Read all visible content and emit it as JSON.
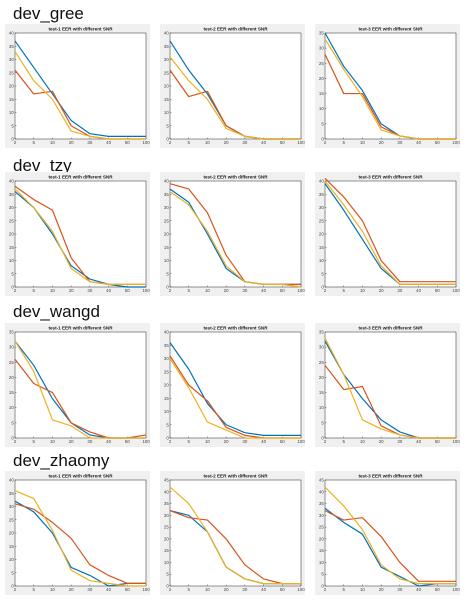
{
  "colors": {
    "blue": "#0072BD",
    "red": "#D95319",
    "yellow": "#EDB120"
  },
  "rows": [
    {
      "label": "dev_gree",
      "charts": [
        {
          "type": "line",
          "title": "test-1 EER with different SNR",
          "categories": [
            "2",
            "5",
            "10",
            "20",
            "30",
            "40",
            "50",
            "100"
          ],
          "yticks": [
            0,
            5,
            10,
            15,
            20,
            25,
            30,
            35,
            40
          ],
          "ylim": [
            0,
            40
          ],
          "series": [
            {
              "color": "blue",
              "values": [
                37,
                27,
                17,
                7,
                2,
                1,
                1,
                1
              ]
            },
            {
              "color": "red",
              "values": [
                26,
                17,
                18,
                5,
                1,
                0,
                0,
                0
              ]
            },
            {
              "color": "yellow",
              "values": [
                33,
                22,
                15,
                3,
                1,
                0,
                0,
                0
              ]
            }
          ]
        },
        {
          "type": "line",
          "title": "test-2 EER with different SNR",
          "categories": [
            "2",
            "5",
            "10",
            "20",
            "30",
            "40",
            "50",
            "100"
          ],
          "yticks": [
            0,
            5,
            10,
            15,
            20,
            25,
            30,
            35,
            40
          ],
          "ylim": [
            0,
            40
          ],
          "series": [
            {
              "color": "blue",
              "values": [
                37,
                26,
                17,
                5,
                1,
                0,
                0,
                0
              ]
            },
            {
              "color": "red",
              "values": [
                26,
                16,
                18,
                5,
                1,
                0,
                0,
                0
              ]
            },
            {
              "color": "yellow",
              "values": [
                31,
                22,
                15,
                4,
                1,
                0,
                0,
                0
              ]
            }
          ]
        },
        {
          "type": "line",
          "title": "test-3 EER with different SNR",
          "categories": [
            "2",
            "5",
            "10",
            "20",
            "30",
            "40",
            "50",
            "100"
          ],
          "yticks": [
            0,
            5,
            10,
            15,
            20,
            25,
            30,
            35
          ],
          "ylim": [
            0,
            35
          ],
          "series": [
            {
              "color": "blue",
              "values": [
                35,
                24,
                16,
                5,
                1,
                0,
                0,
                0
              ]
            },
            {
              "color": "red",
              "values": [
                28,
                15,
                15,
                4,
                1,
                0,
                0,
                0
              ]
            },
            {
              "color": "yellow",
              "values": [
                33,
                23,
                14,
                3,
                1,
                0,
                0,
                0
              ]
            }
          ]
        }
      ]
    },
    {
      "label": "dev_tzy",
      "charts": [
        {
          "type": "line",
          "title": "test-1 EER with different SNR",
          "categories": [
            "2",
            "5",
            "10",
            "20",
            "30",
            "40",
            "50",
            "100"
          ],
          "yticks": [
            0,
            5,
            10,
            15,
            20,
            25,
            30,
            35,
            40
          ],
          "ylim": [
            0,
            40
          ],
          "series": [
            {
              "color": "blue",
              "values": [
                36,
                30,
                20,
                8,
                3,
                1,
                0,
                0
              ]
            },
            {
              "color": "red",
              "values": [
                38,
                33,
                29,
                11,
                2,
                1,
                1,
                1
              ]
            },
            {
              "color": "yellow",
              "values": [
                37,
                30,
                21,
                7,
                2,
                1,
                1,
                1
              ]
            }
          ]
        },
        {
          "type": "line",
          "title": "test-2 EER with different SNR",
          "categories": [
            "2",
            "5",
            "10",
            "20",
            "30",
            "40",
            "50",
            "100"
          ],
          "yticks": [
            0,
            5,
            10,
            15,
            20,
            25,
            30,
            35,
            40
          ],
          "ylim": [
            0,
            40
          ],
          "series": [
            {
              "color": "blue",
              "values": [
                37,
                32,
                20,
                7,
                2,
                1,
                1,
                1
              ]
            },
            {
              "color": "red",
              "values": [
                39,
                37,
                28,
                12,
                2,
                1,
                1,
                1
              ]
            },
            {
              "color": "yellow",
              "values": [
                36,
                31,
                21,
                8,
                2,
                1,
                1,
                0
              ]
            }
          ]
        },
        {
          "type": "line",
          "title": "test-3 EER with different SNR",
          "categories": [
            "2",
            "5",
            "10",
            "20",
            "30",
            "40",
            "50",
            "100"
          ],
          "yticks": [
            0,
            5,
            10,
            15,
            20,
            25,
            30,
            35,
            40
          ],
          "ylim": [
            0,
            40
          ],
          "series": [
            {
              "color": "blue",
              "values": [
                39,
                29,
                18,
                7,
                1,
                1,
                1,
                1
              ]
            },
            {
              "color": "red",
              "values": [
                41,
                34,
                25,
                10,
                2,
                2,
                2,
                2
              ]
            },
            {
              "color": "yellow",
              "values": [
                40,
                31,
                21,
                8,
                1,
                1,
                1,
                1
              ]
            }
          ]
        }
      ]
    },
    {
      "label": "dev_wangd",
      "charts": [
        {
          "type": "line",
          "title": "test-1 EER with different SNR",
          "categories": [
            "2",
            "5",
            "10",
            "20",
            "30",
            "40",
            "50",
            "100"
          ],
          "yticks": [
            0,
            5,
            10,
            15,
            20,
            25,
            30,
            35
          ],
          "ylim": [
            0,
            35
          ],
          "series": [
            {
              "color": "blue",
              "values": [
                32,
                24,
                13,
                5,
                1,
                0,
                0,
                0
              ]
            },
            {
              "color": "red",
              "values": [
                26,
                18,
                15,
                5,
                2,
                0,
                0,
                1
              ]
            },
            {
              "color": "yellow",
              "values": [
                32,
                22,
                6,
                4,
                0,
                0,
                0,
                0
              ]
            }
          ]
        },
        {
          "type": "line",
          "title": "test-2 EER with different SNR",
          "categories": [
            "2",
            "5",
            "10",
            "20",
            "30",
            "40",
            "50",
            "100"
          ],
          "yticks": [
            0,
            5,
            10,
            15,
            20,
            25,
            30,
            35,
            40
          ],
          "ylim": [
            0,
            40
          ],
          "series": [
            {
              "color": "blue",
              "values": [
                36,
                26,
                13,
                5,
                2,
                1,
                1,
                1
              ]
            },
            {
              "color": "red",
              "values": [
                31,
                20,
                14,
                4,
                1,
                0,
                0,
                0
              ]
            },
            {
              "color": "yellow",
              "values": [
                30,
                19,
                6,
                3,
                0,
                0,
                0,
                0
              ]
            }
          ]
        },
        {
          "type": "line",
          "title": "test-3 EER with different SNR",
          "categories": [
            "2",
            "5",
            "10",
            "20",
            "30",
            "40",
            "50",
            "100"
          ],
          "yticks": [
            0,
            5,
            10,
            15,
            20,
            25,
            30,
            35
          ],
          "ylim": [
            0,
            35
          ],
          "series": [
            {
              "color": "blue",
              "values": [
                32,
                21,
                13,
                6,
                2,
                0,
                0,
                0
              ]
            },
            {
              "color": "red",
              "values": [
                24,
                16,
                17,
                4,
                1,
                0,
                0,
                0
              ]
            },
            {
              "color": "yellow",
              "values": [
                33,
                21,
                6,
                3,
                1,
                0,
                0,
                0
              ]
            }
          ]
        }
      ]
    },
    {
      "label": "dev_zhaomy",
      "charts": [
        {
          "type": "line",
          "title": "test-1 EER with different SNR",
          "categories": [
            "2",
            "5",
            "10",
            "20",
            "30",
            "40",
            "50",
            "100"
          ],
          "yticks": [
            0,
            5,
            10,
            15,
            20,
            25,
            30,
            35,
            40
          ],
          "ylim": [
            0,
            40
          ],
          "series": [
            {
              "color": "blue",
              "values": [
                32,
                28,
                20,
                7,
                4,
                0,
                1,
                1
              ]
            },
            {
              "color": "red",
              "values": [
                31,
                29,
                24,
                18,
                8,
                4,
                1,
                1
              ]
            },
            {
              "color": "yellow",
              "values": [
                36,
                33,
                21,
                6,
                2,
                1,
                0,
                0
              ]
            }
          ]
        },
        {
          "type": "line",
          "title": "test-2 EER with different SNR",
          "categories": [
            "2",
            "5",
            "10",
            "20",
            "30",
            "40",
            "50",
            "100"
          ],
          "yticks": [
            0,
            5,
            10,
            15,
            20,
            25,
            30,
            35,
            40,
            45
          ],
          "ylim": [
            0,
            45
          ],
          "series": [
            {
              "color": "blue",
              "values": [
                32,
                30,
                23,
                8,
                3,
                1,
                1,
                1
              ]
            },
            {
              "color": "red",
              "values": [
                32,
                29,
                28,
                20,
                9,
                3,
                1,
                1
              ]
            },
            {
              "color": "yellow",
              "values": [
                42,
                35,
                23,
                8,
                3,
                1,
                1,
                1
              ]
            }
          ]
        },
        {
          "type": "line",
          "title": "test-3 EER with different SNR",
          "categories": [
            "2",
            "5",
            "10",
            "20",
            "30",
            "40",
            "50",
            "100"
          ],
          "yticks": [
            0,
            5,
            10,
            15,
            20,
            25,
            30,
            35,
            40,
            45
          ],
          "ylim": [
            0,
            45
          ],
          "series": [
            {
              "color": "blue",
              "values": [
                33,
                27,
                22,
                8,
                4,
                0,
                1,
                1
              ]
            },
            {
              "color": "red",
              "values": [
                32,
                28,
                29,
                21,
                10,
                2,
                2,
                2
              ]
            },
            {
              "color": "yellow",
              "values": [
                42,
                34,
                24,
                9,
                3,
                1,
                1,
                1
              ]
            }
          ]
        }
      ]
    }
  ]
}
